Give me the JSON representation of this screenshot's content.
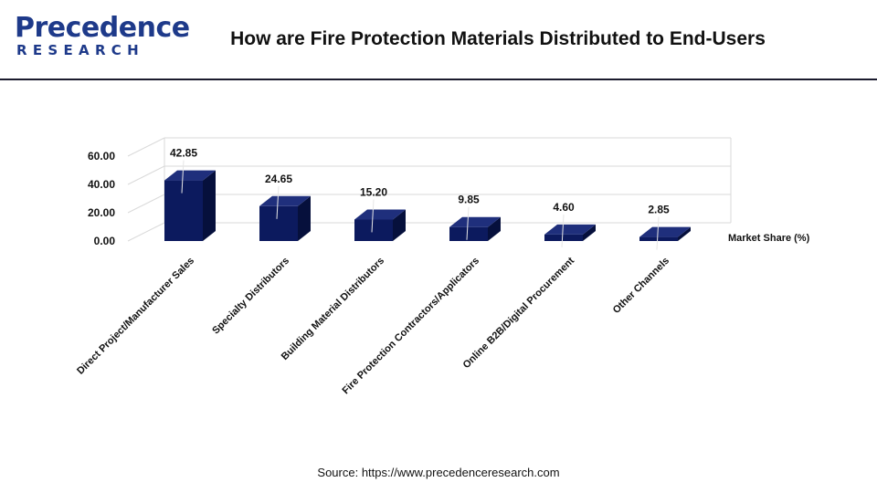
{
  "header": {
    "logo_main": "Precedence",
    "logo_sub": "RESEARCH",
    "title": "How are Fire Protection Materials Distributed to End-Users"
  },
  "source": "Source: https://www.precedenceresearch.com",
  "colors": {
    "bar_front": "#0c1a5e",
    "bar_side": "#06103c",
    "bar_top": "#1f2f7c",
    "grid": "#d9d9d9",
    "brand": "#1e3a8a"
  },
  "chart_data": {
    "type": "bar",
    "categories": [
      "Direct Project/Manufacturer Sales",
      "Specialty Distributors",
      "Building Material Distributors",
      "Fire Protection Contractors/Applicators",
      "Online B2B/Digital Procurement",
      "Other Channels"
    ],
    "series": [
      {
        "name": "Market Share (%)",
        "values": [
          42.85,
          24.65,
          15.2,
          9.85,
          4.6,
          2.85
        ]
      }
    ],
    "value_labels": [
      "42.85",
      "24.65",
      "15.20",
      "9.85",
      "4.60",
      "2.85"
    ],
    "y_ticks": [
      "0.00",
      "20.00",
      "40.00",
      "60.00"
    ],
    "ylim": [
      0,
      60
    ],
    "grid": true,
    "legend": "right"
  }
}
